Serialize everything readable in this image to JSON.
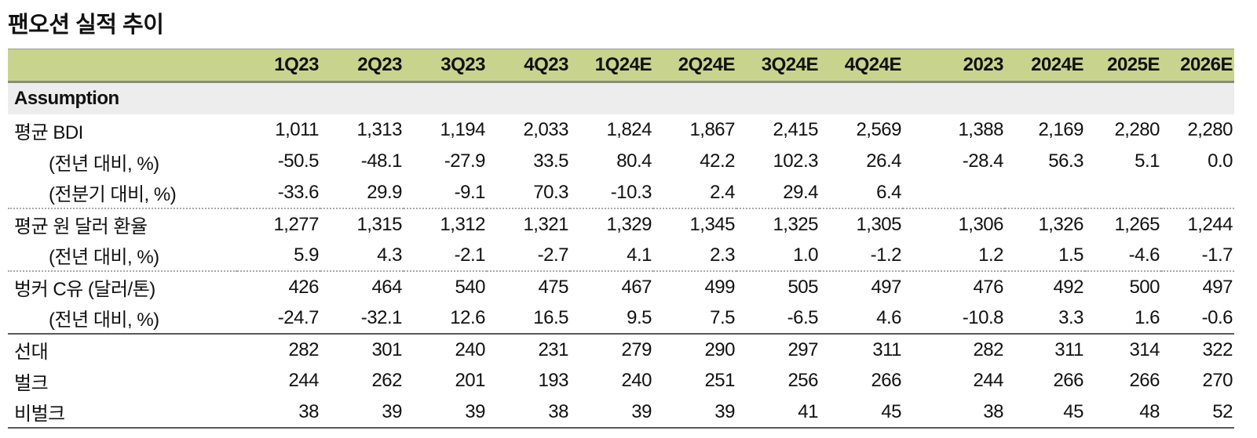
{
  "title": "팬오션 실적 추이",
  "table": {
    "corner_label": "",
    "columns": [
      "1Q23",
      "2Q23",
      "3Q23",
      "4Q23",
      "1Q24E",
      "2Q24E",
      "3Q24E",
      "4Q24E",
      "2023",
      "2024E",
      "2025E",
      "2026E"
    ],
    "section_header": "Assumption",
    "rows": [
      {
        "label": "평균 BDI",
        "indent": false,
        "border_top": "none",
        "values": [
          "1,011",
          "1,313",
          "1,194",
          "2,033",
          "1,824",
          "1,867",
          "2,415",
          "2,569",
          "1,388",
          "2,169",
          "2,280",
          "2,280"
        ]
      },
      {
        "label": "(전년 대비, %)",
        "indent": true,
        "border_top": "none",
        "values": [
          "-50.5",
          "-48.1",
          "-27.9",
          "33.5",
          "80.4",
          "42.2",
          "102.3",
          "26.4",
          "-28.4",
          "56.3",
          "5.1",
          "0.0"
        ]
      },
      {
        "label": "(전분기 대비, %)",
        "indent": true,
        "border_top": "none",
        "values": [
          "-33.6",
          "29.9",
          "-9.1",
          "70.3",
          "-10.3",
          "2.4",
          "29.4",
          "6.4",
          "",
          "",
          "",
          ""
        ]
      },
      {
        "label": "평균 원 달러 환율",
        "indent": false,
        "border_top": "dotted",
        "values": [
          "1,277",
          "1,315",
          "1,312",
          "1,321",
          "1,329",
          "1,345",
          "1,325",
          "1,305",
          "1,306",
          "1,326",
          "1,265",
          "1,244"
        ]
      },
      {
        "label": "(전년 대비, %)",
        "indent": true,
        "border_top": "none",
        "values": [
          "5.9",
          "4.3",
          "-2.1",
          "-2.7",
          "4.1",
          "2.3",
          "1.0",
          "-1.2",
          "1.2",
          "1.5",
          "-4.6",
          "-1.7"
        ]
      },
      {
        "label": "벙커 C유 (달러/톤)",
        "indent": false,
        "border_top": "dotted",
        "values": [
          "426",
          "464",
          "540",
          "475",
          "467",
          "499",
          "505",
          "497",
          "476",
          "492",
          "500",
          "497"
        ]
      },
      {
        "label": "(전년 대비, %)",
        "indent": true,
        "border_top": "none",
        "values": [
          "-24.7",
          "-32.1",
          "12.6",
          "16.5",
          "9.5",
          "7.5",
          "-6.5",
          "4.6",
          "-10.8",
          "3.3",
          "1.6",
          "-0.6"
        ]
      },
      {
        "label": "선대",
        "indent": false,
        "border_top": "solid",
        "values": [
          "282",
          "301",
          "240",
          "231",
          "279",
          "290",
          "297",
          "311",
          "282",
          "311",
          "314",
          "322"
        ]
      },
      {
        "label": "벌크",
        "indent": false,
        "border_top": "none",
        "values": [
          "244",
          "262",
          "201",
          "193",
          "240",
          "251",
          "256",
          "266",
          "244",
          "266",
          "266",
          "270"
        ]
      },
      {
        "label": "비벌크",
        "indent": false,
        "border_top": "none",
        "values": [
          "38",
          "39",
          "39",
          "38",
          "39",
          "39",
          "41",
          "45",
          "38",
          "45",
          "48",
          "52"
        ]
      }
    ]
  },
  "colors": {
    "header_bg": "#c8d48d",
    "header_border": "#8a8d75",
    "section_bg": "#ededed",
    "strong_line": "#595959",
    "dotted_line": "#a9a9a9",
    "light_line": "#9a9a8c",
    "text": "#111111"
  }
}
